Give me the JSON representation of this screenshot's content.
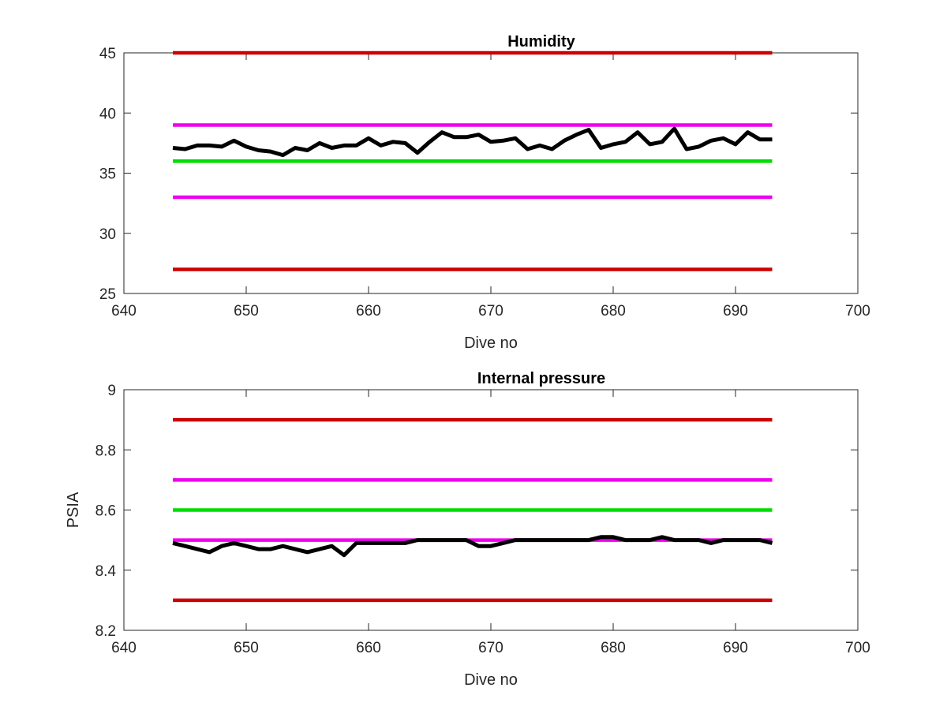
{
  "chart_data": [
    {
      "type": "line",
      "title": "Humidity",
      "xlabel": "Dive no",
      "ylabel": "",
      "xlim": [
        640,
        700
      ],
      "ylim": [
        25,
        45
      ],
      "xticks": [
        640,
        650,
        660,
        670,
        680,
        690,
        700
      ],
      "yticks": [
        25,
        30,
        35,
        40,
        45
      ],
      "grid": false,
      "reference_lines": [
        {
          "y": 45,
          "x": [
            644,
            693
          ],
          "color": "#cc0000"
        },
        {
          "y": 39,
          "x": [
            644,
            693
          ],
          "color": "#ee00ee"
        },
        {
          "y": 36,
          "x": [
            644,
            693
          ],
          "color": "#00dd00"
        },
        {
          "y": 33,
          "x": [
            644,
            693
          ],
          "color": "#ee00ee"
        },
        {
          "y": 27,
          "x": [
            644,
            693
          ],
          "color": "#cc0000"
        }
      ],
      "series": [
        {
          "color": "#000000",
          "x": [
            644,
            645,
            646,
            647,
            648,
            649,
            650,
            651,
            652,
            653,
            654,
            655,
            656,
            657,
            658,
            659,
            660,
            661,
            662,
            663,
            664,
            665,
            666,
            667,
            668,
            669,
            670,
            671,
            672,
            673,
            674,
            675,
            676,
            677,
            678,
            679,
            680,
            681,
            682,
            683,
            684,
            685,
            686,
            687,
            688,
            689,
            690,
            691,
            692,
            693
          ],
          "values": [
            37.1,
            37.0,
            37.3,
            37.3,
            37.2,
            37.7,
            37.2,
            36.9,
            36.8,
            36.5,
            37.1,
            36.9,
            37.5,
            37.1,
            37.3,
            37.3,
            37.9,
            37.3,
            37.6,
            37.5,
            36.7,
            37.6,
            38.4,
            38.0,
            38.0,
            38.2,
            37.6,
            37.7,
            37.9,
            37.0,
            37.3,
            37.0,
            37.7,
            38.2,
            38.6,
            37.1,
            37.4,
            37.6,
            38.4,
            37.4,
            37.6,
            38.7,
            37.0,
            37.2,
            37.7,
            37.9,
            37.4,
            38.4,
            37.8,
            37.8
          ]
        }
      ]
    },
    {
      "type": "line",
      "title": "Internal pressure",
      "xlabel": "Dive no",
      "ylabel": "PSIA",
      "xlim": [
        640,
        700
      ],
      "ylim": [
        8.2,
        9
      ],
      "xticks": [
        640,
        650,
        660,
        670,
        680,
        690,
        700
      ],
      "yticks": [
        8.2,
        8.4,
        8.6,
        8.8,
        9
      ],
      "grid": false,
      "reference_lines": [
        {
          "y": 8.9,
          "x": [
            644,
            693
          ],
          "color": "#cc0000"
        },
        {
          "y": 8.7,
          "x": [
            644,
            693
          ],
          "color": "#ee00ee"
        },
        {
          "y": 8.6,
          "x": [
            644,
            693
          ],
          "color": "#00dd00"
        },
        {
          "y": 8.5,
          "x": [
            644,
            693
          ],
          "color": "#ee00ee"
        },
        {
          "y": 8.3,
          "x": [
            644,
            693
          ],
          "color": "#cc0000"
        }
      ],
      "series": [
        {
          "color": "#000000",
          "x": [
            644,
            645,
            646,
            647,
            648,
            649,
            650,
            651,
            652,
            653,
            654,
            655,
            656,
            657,
            658,
            659,
            660,
            661,
            662,
            663,
            664,
            665,
            666,
            667,
            668,
            669,
            670,
            671,
            672,
            673,
            674,
            675,
            676,
            677,
            678,
            679,
            680,
            681,
            682,
            683,
            684,
            685,
            686,
            687,
            688,
            689,
            690,
            691,
            692,
            693
          ],
          "values": [
            8.49,
            8.48,
            8.47,
            8.46,
            8.48,
            8.49,
            8.48,
            8.47,
            8.47,
            8.48,
            8.47,
            8.46,
            8.47,
            8.48,
            8.45,
            8.49,
            8.49,
            8.49,
            8.49,
            8.49,
            8.5,
            8.5,
            8.5,
            8.5,
            8.5,
            8.48,
            8.48,
            8.49,
            8.5,
            8.5,
            8.5,
            8.5,
            8.5,
            8.5,
            8.5,
            8.51,
            8.51,
            8.5,
            8.5,
            8.5,
            8.51,
            8.5,
            8.5,
            8.5,
            8.49,
            8.5,
            8.5,
            8.5,
            8.5,
            8.49
          ]
        }
      ]
    }
  ]
}
